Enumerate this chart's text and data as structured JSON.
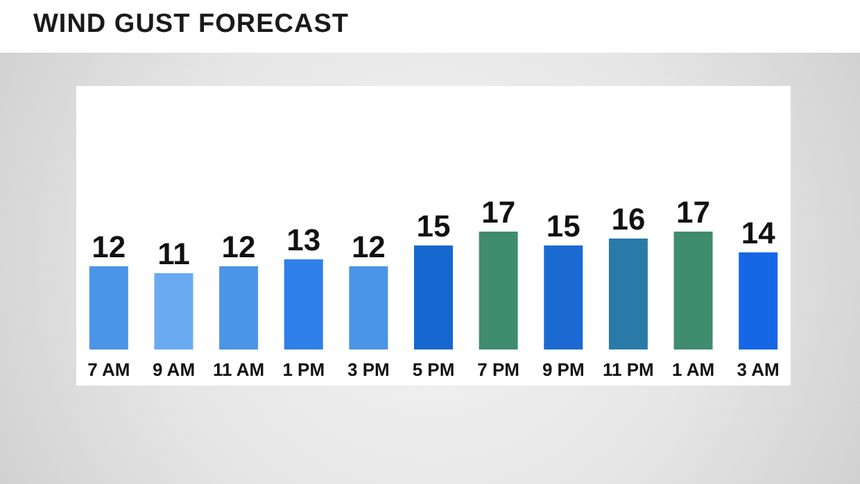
{
  "chart_data": {
    "type": "bar",
    "title": "WIND GUST FORECAST",
    "categories": [
      "7 AM",
      "9 AM",
      "11 AM",
      "1 PM",
      "3 PM",
      "5 PM",
      "7 PM",
      "9 PM",
      "11 PM",
      "1 AM",
      "3 AM"
    ],
    "values": [
      12,
      11,
      12,
      13,
      12,
      15,
      17,
      15,
      16,
      17,
      14
    ],
    "colors": [
      "#4b94e8",
      "#6aaaf0",
      "#4b94e8",
      "#2f7fe8",
      "#4b94e8",
      "#1767d0",
      "#3f8c6e",
      "#1a6ad2",
      "#2a7aa8",
      "#3f8c6e",
      "#1666e6"
    ],
    "data_labels": true
  }
}
